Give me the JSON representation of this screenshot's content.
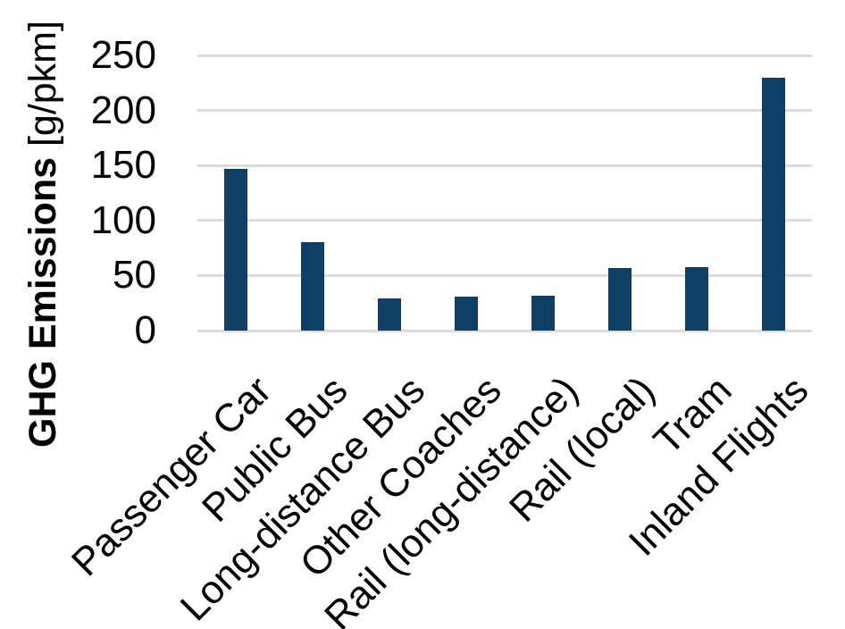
{
  "chart_data": {
    "type": "bar",
    "title": "",
    "ylabel_bold": "GHG Emissions",
    "ylabel_unit": " [g/pkm]",
    "categories": [
      "Passenger Car",
      "Public Bus",
      "Long-distance Bus",
      "Other Coaches",
      "Rail (long-distance)",
      "Rail (local)",
      "Tram",
      "Inland Flights"
    ],
    "values": [
      147,
      80,
      29,
      31,
      32,
      57,
      58,
      230
    ],
    "yticks": [
      0,
      50,
      100,
      150,
      200,
      250
    ],
    "ylim": [
      0,
      250
    ],
    "xlabel": "",
    "bar_color": "#0d3f67",
    "gridline_color": "#dcdcdc",
    "text_color": "#000000",
    "grid": true,
    "legend": false,
    "x_label_rotation_deg": -45
  }
}
